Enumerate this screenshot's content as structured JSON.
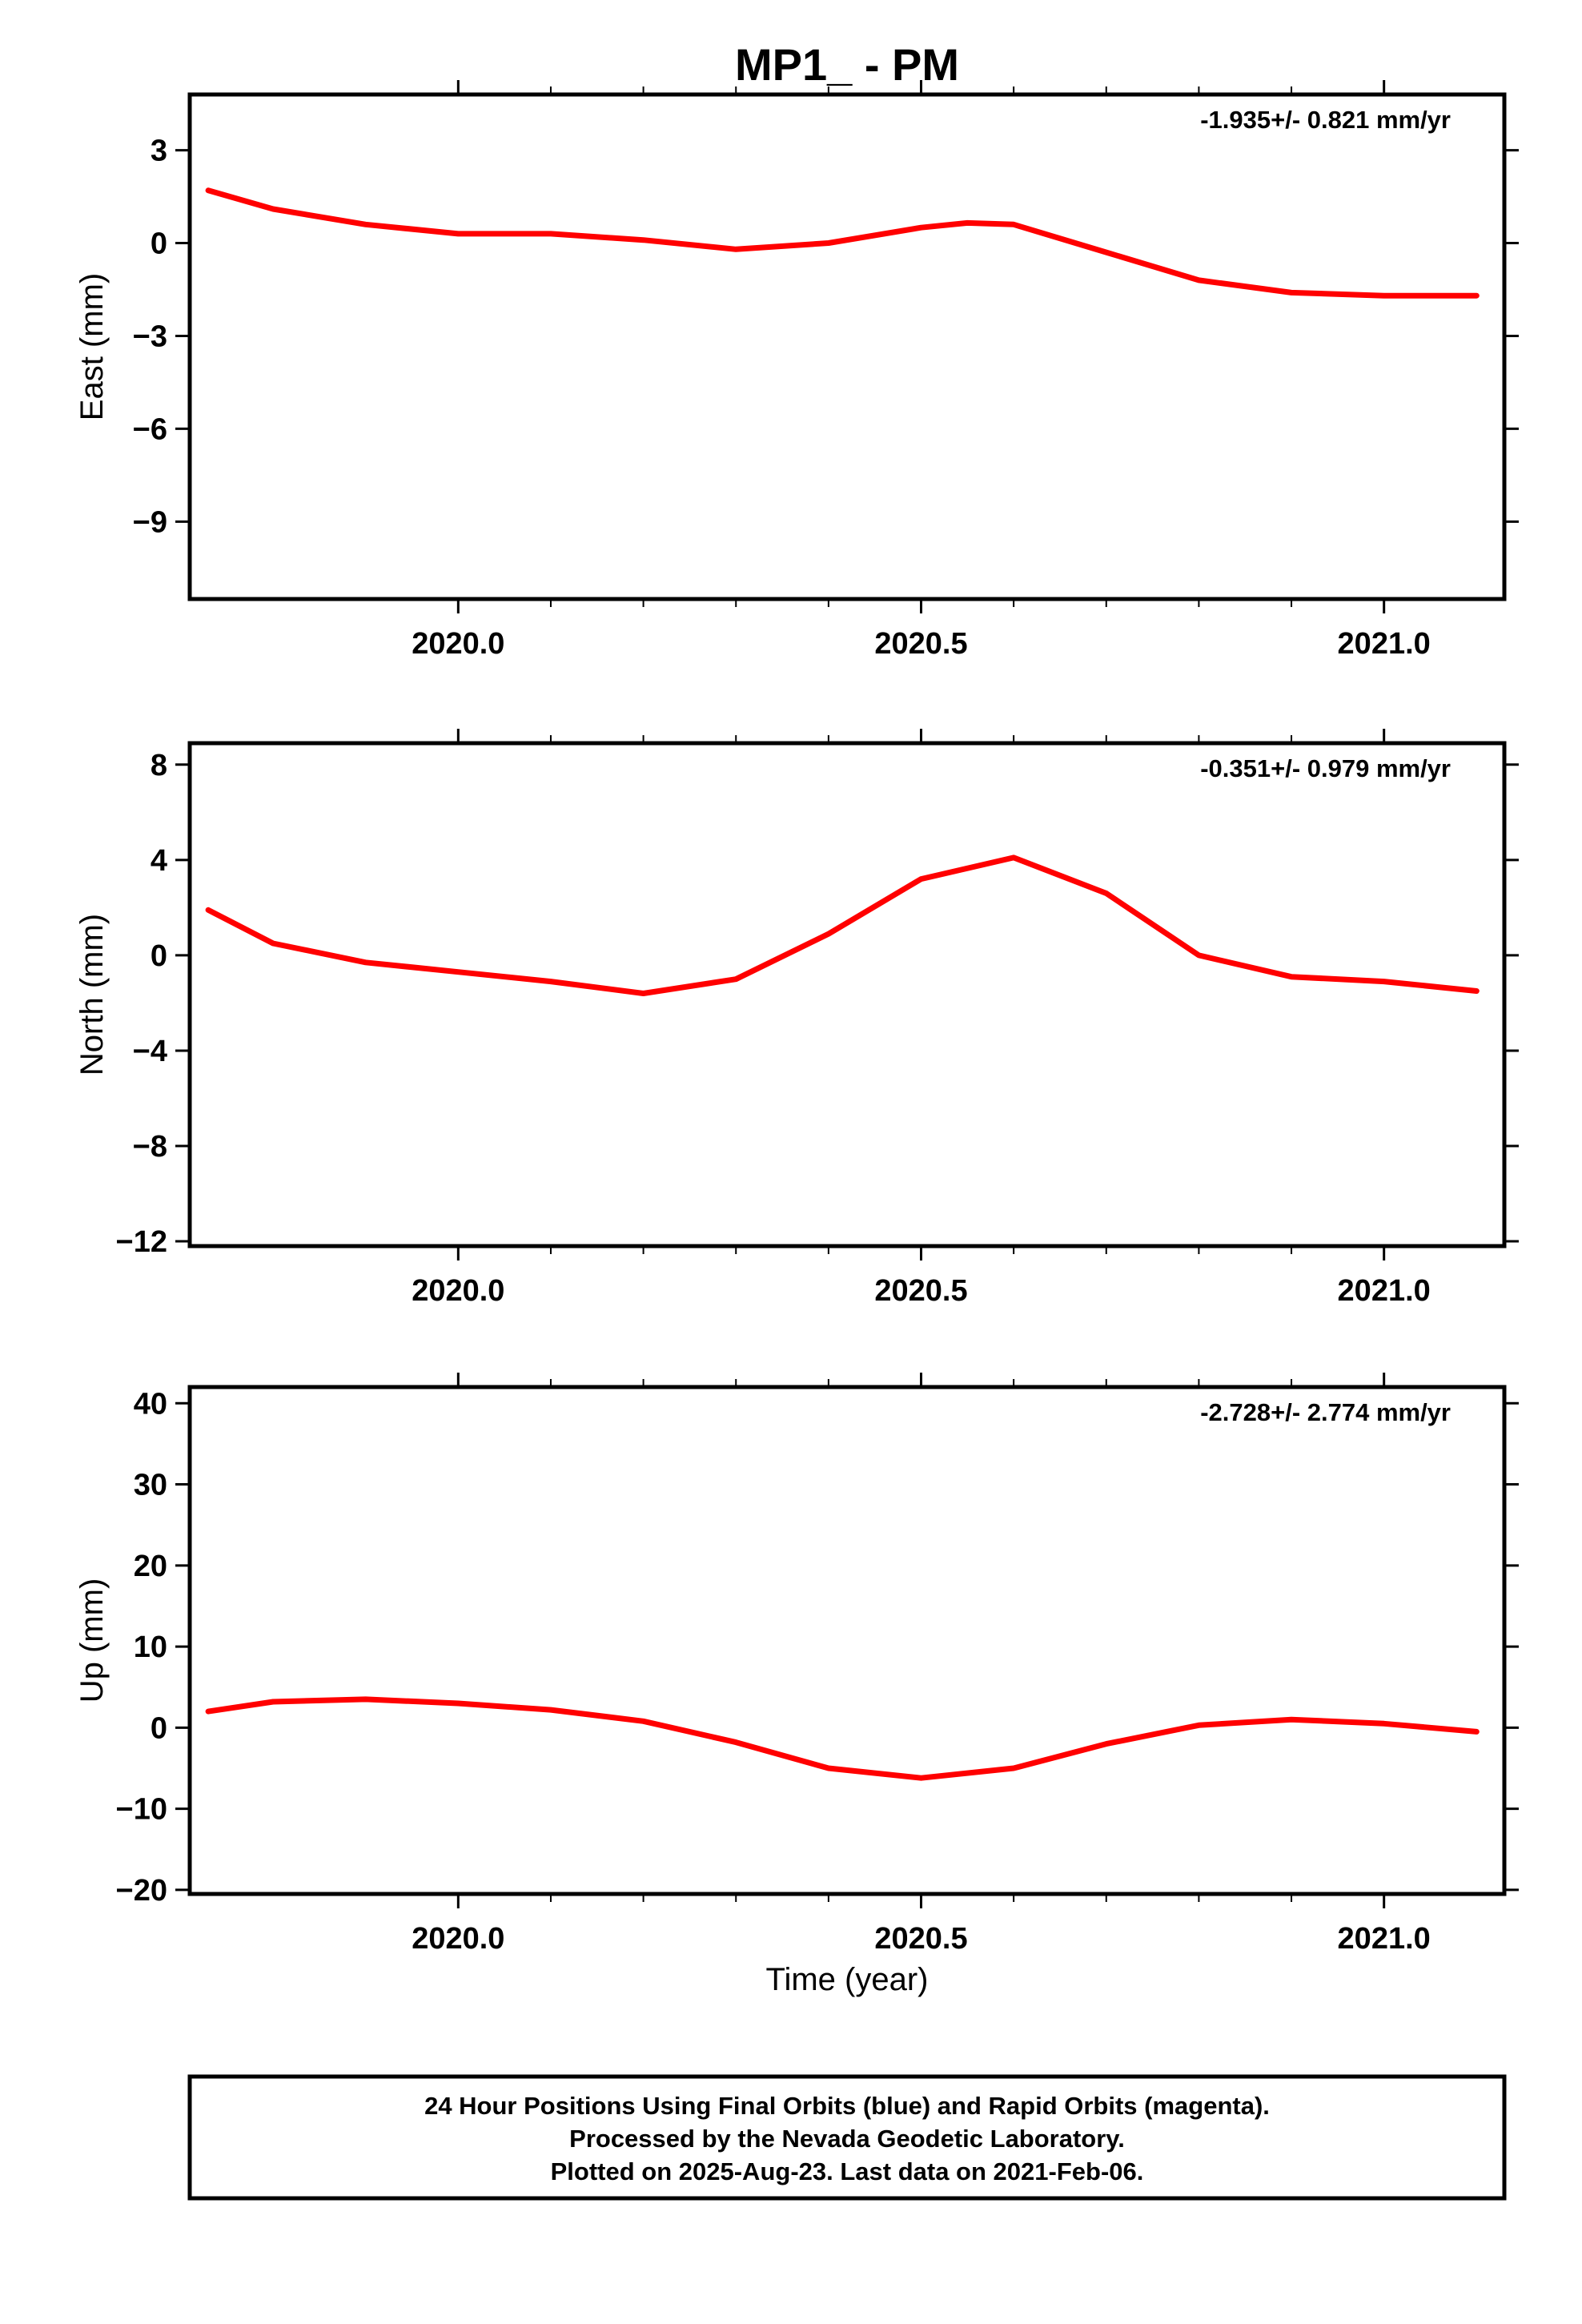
{
  "title": "MP1_ - PM",
  "xlabel": "Time (year)",
  "footer": {
    "line1": "24 Hour Positions Using Final Orbits (blue) and Rapid Orbits (magenta).",
    "line2": "Processed by the Nevada Geodetic Laboratory.",
    "line3": "Plotted on 2025-Aug-23. Last data on 2021-Feb-06."
  },
  "colors": {
    "final_orbits": "#0000ff",
    "rapid_orbits": "#ff00ff",
    "model_fit": "#ff0000"
  },
  "chart_data": [
    {
      "type": "scatter",
      "ylabel": "East (mm)",
      "rate": "-1.935+/- 0.821 mm/yr",
      "xlim": [
        2019.71,
        2021.13
      ],
      "ylim": [
        -11.5,
        4.8
      ],
      "xticks": [
        2020.0,
        2020.5,
        2021.0
      ],
      "xtick_labels": [
        "2020.0",
        "2020.5",
        "2021.0"
      ],
      "yticks": [
        3,
        0,
        -3,
        -6,
        -9
      ],
      "ytick_labels": [
        "3",
        "0",
        "−3",
        "−6",
        "−9"
      ],
      "model_fit": {
        "x": [
          2019.73,
          2019.8,
          2019.9,
          2020.0,
          2020.1,
          2020.2,
          2020.3,
          2020.4,
          2020.5,
          2020.55,
          2020.6,
          2020.7,
          2020.8,
          2020.9,
          2021.0,
          2021.1
        ],
        "y": [
          1.7,
          1.1,
          0.6,
          0.3,
          0.3,
          0.1,
          -0.2,
          0.0,
          0.5,
          0.65,
          0.6,
          -0.3,
          -1.2,
          -1.6,
          -1.7,
          -1.7
        ]
      },
      "series": [
        {
          "name": "Final Orbits",
          "x": [],
          "y": []
        },
        {
          "name": "Rapid Orbits",
          "x": [],
          "y": []
        }
      ]
    },
    {
      "type": "scatter",
      "ylabel": "North (mm)",
      "rate": "-0.351+/- 0.979 mm/yr",
      "xlim": [
        2019.71,
        2021.13
      ],
      "ylim": [
        -12.2,
        8.9
      ],
      "xticks": [
        2020.0,
        2020.5,
        2021.0
      ],
      "xtick_labels": [
        "2020.0",
        "2020.5",
        "2021.0"
      ],
      "yticks": [
        8,
        4,
        0,
        -4,
        -8,
        -12
      ],
      "ytick_labels": [
        "8",
        "4",
        "0",
        "−4",
        "−8",
        "−12"
      ],
      "model_fit": {
        "x": [
          2019.73,
          2019.8,
          2019.9,
          2020.0,
          2020.1,
          2020.2,
          2020.3,
          2020.4,
          2020.5,
          2020.6,
          2020.7,
          2020.8,
          2020.9,
          2021.0,
          2021.1
        ],
        "y": [
          1.9,
          0.5,
          -0.3,
          -0.7,
          -1.1,
          -1.6,
          -1.0,
          0.9,
          3.2,
          4.1,
          2.6,
          0.0,
          -0.9,
          -1.1,
          -1.5
        ]
      },
      "series": [
        {
          "name": "Final Orbits",
          "x": [],
          "y": []
        },
        {
          "name": "Rapid Orbits",
          "x": [],
          "y": []
        }
      ]
    },
    {
      "type": "scatter",
      "ylabel": "Up (mm)",
      "rate": "-2.728+/- 2.774 mm/yr",
      "xlim": [
        2019.71,
        2021.13
      ],
      "ylim": [
        -20.5,
        42
      ],
      "xticks": [
        2020.0,
        2020.5,
        2021.0
      ],
      "xtick_labels": [
        "2020.0",
        "2020.5",
        "2021.0"
      ],
      "yticks": [
        40,
        30,
        20,
        10,
        0,
        -10,
        -20
      ],
      "ytick_labels": [
        "40",
        "30",
        "20",
        "10",
        "0",
        "−10",
        "−20"
      ],
      "model_fit": {
        "x": [
          2019.73,
          2019.8,
          2019.9,
          2020.0,
          2020.1,
          2020.2,
          2020.3,
          2020.4,
          2020.5,
          2020.6,
          2020.7,
          2020.8,
          2020.9,
          2021.0,
          2021.1
        ],
        "y": [
          2.0,
          3.2,
          3.5,
          3.0,
          2.2,
          0.8,
          -1.8,
          -5.0,
          -6.2,
          -5.0,
          -2.0,
          0.3,
          1.0,
          0.5,
          -0.5
        ]
      },
      "series": [
        {
          "name": "Final Orbits",
          "x": [],
          "y": []
        },
        {
          "name": "Rapid Orbits",
          "x": [],
          "y": []
        }
      ]
    }
  ]
}
